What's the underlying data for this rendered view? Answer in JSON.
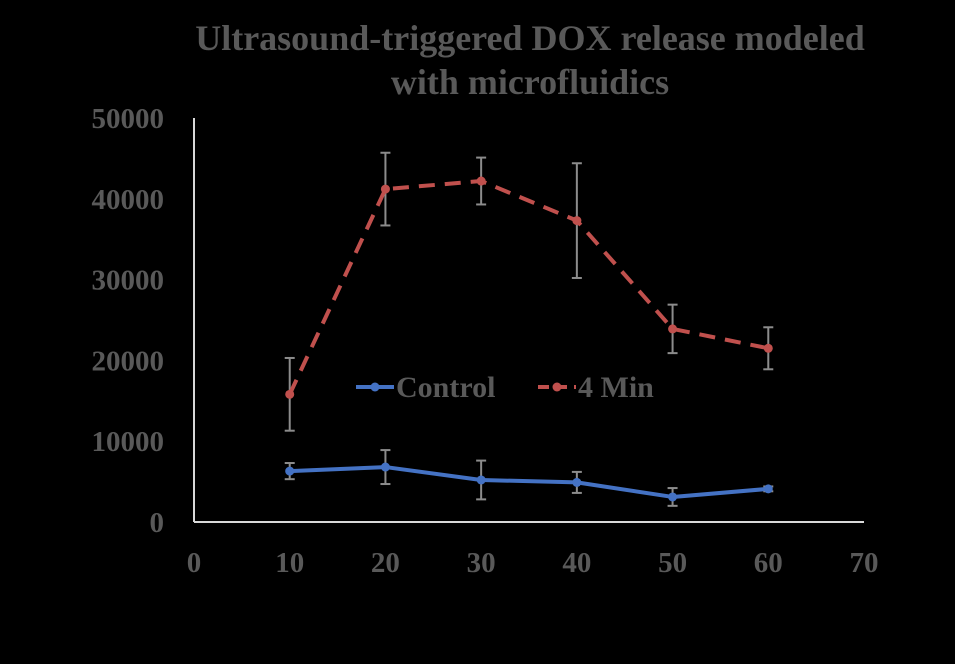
{
  "chart_data": {
    "type": "line",
    "title": "Ultrasound-triggered DOX release modeled with microfluidics",
    "title_lines": [
      "Ultrasound-triggered DOX release modeled",
      "with microfluidics"
    ],
    "xlabel": "",
    "ylabel": "",
    "xlim": [
      0,
      70
    ],
    "ylim": [
      0,
      50000
    ],
    "x_ticks": [
      "0",
      "10",
      "20",
      "30",
      "40",
      "50",
      "60",
      "70"
    ],
    "y_ticks": [
      "0",
      "10000",
      "20000",
      "30000",
      "40000",
      "50000"
    ],
    "grid": false,
    "legend_position": "center",
    "series": [
      {
        "name": "Control",
        "color": "#4472C4",
        "style": "solid",
        "x": [
          10,
          20,
          30,
          40,
          50,
          60
        ],
        "values": [
          6300,
          6800,
          5200,
          4900,
          3100,
          4100
        ],
        "error": [
          1000,
          2100,
          2400,
          1300,
          1100,
          300
        ]
      },
      {
        "name": "4 Min",
        "color": "#C0504D",
        "style": "dashed",
        "x": [
          10,
          20,
          30,
          40,
          50,
          60
        ],
        "values": [
          15800,
          41200,
          42200,
          37300,
          23900,
          21500
        ],
        "error": [
          4500,
          4500,
          2900,
          7100,
          3000,
          2600
        ]
      }
    ]
  }
}
